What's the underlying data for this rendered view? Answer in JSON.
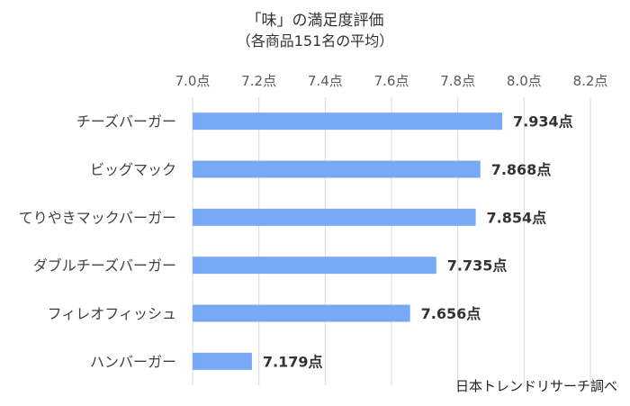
{
  "chart_data": {
    "type": "bar",
    "orientation": "horizontal",
    "title": "「味」の満足度評価",
    "subtitle": "（各商品151名の平均）",
    "categories": [
      "チーズバーガー",
      "ビッグマック",
      "てりやきマックバーガー",
      "ダブルチーズバーガー",
      "フィレオフィッシュ",
      "ハンバーガー"
    ],
    "values": [
      7.934,
      7.868,
      7.854,
      7.735,
      7.656,
      7.179
    ],
    "value_labels": [
      "7.934点",
      "7.868点",
      "7.854点",
      "7.735点",
      "7.656点",
      "7.179点"
    ],
    "x_ticks": [
      7.0,
      7.2,
      7.4,
      7.6,
      7.8,
      8.0,
      8.2
    ],
    "x_tick_labels": [
      "7.0点",
      "7.2点",
      "7.4点",
      "7.6点",
      "7.8点",
      "8.0点",
      "8.2点"
    ],
    "xlim": [
      7.0,
      8.2
    ],
    "xlabel": "",
    "ylabel": "",
    "axis_position": "top",
    "grid": true,
    "legend": "none",
    "bar_color": "#77a9f6",
    "grid_color": "#d9d9d9"
  },
  "source_note": "日本トレンドリサーチ調べ"
}
